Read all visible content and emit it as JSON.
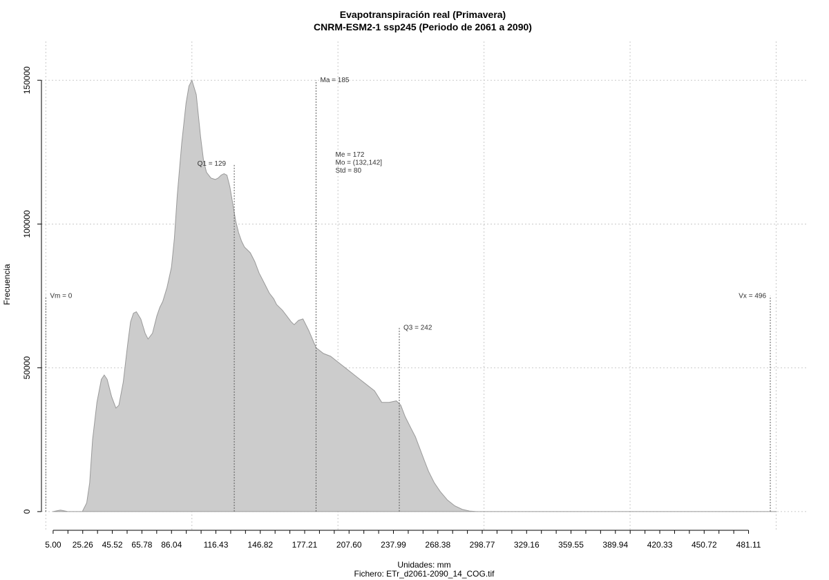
{
  "chart_data": {
    "type": "area",
    "title": "Evapotranspiración real (Primavera)",
    "subtitle": "CNRM-ESM2-1 ssp245 (Periodo de 2061 a 2090)",
    "xlabel": "Unidades: mm",
    "ylabel": "Frecuencia",
    "file_label": "Fichero: ETr_d2061-2090_14_COG.tif",
    "xlim": [
      -3,
      522
    ],
    "ylim": [
      -6500,
      163500
    ],
    "x_ticks": [
      5.0,
      25.26,
      45.52,
      65.78,
      86.04,
      116.43,
      146.82,
      177.21,
      207.6,
      237.99,
      268.38,
      298.77,
      329.16,
      359.55,
      389.94,
      420.33,
      450.72,
      481.11
    ],
    "x_tick_labels": [
      "5.00",
      "25.26",
      "45.52",
      "65.78",
      "86.04",
      "116.43",
      "146.82",
      "177.21",
      "207.60",
      "237.99",
      "268.38",
      "298.77",
      "329.16",
      "359.55",
      "389.94",
      "420.33",
      "450.72",
      "481.11"
    ],
    "x_minor_ticks": [
      5,
      15.13,
      25.26,
      35.39,
      45.52,
      55.65,
      65.78,
      75.91,
      86.04,
      96.17,
      106.3,
      116.43,
      126.56,
      136.69,
      146.82,
      156.95,
      167.08,
      177.21,
      187.34,
      197.47,
      207.6,
      217.73,
      227.86,
      237.99,
      248.12,
      258.25,
      268.38,
      278.51,
      288.64,
      298.77,
      308.9,
      319.03,
      329.16,
      339.29,
      349.42,
      359.55,
      369.68,
      379.81,
      389.94,
      400.07,
      410.2,
      420.33,
      430.46,
      440.59,
      450.72,
      460.85,
      470.98,
      481.11
    ],
    "y_ticks": [
      0,
      50000,
      100000,
      150000
    ],
    "y_tick_labels": [
      "0",
      "50000",
      "100000",
      "150000"
    ],
    "grid_x": [
      0,
      100,
      200,
      300,
      400,
      500
    ],
    "grid_y": [
      0,
      50000,
      100000,
      150000
    ],
    "grid": true,
    "fill_color": "#cccccc",
    "edge_color": "#999999",
    "series": [
      {
        "x": [
          5,
          10,
          15,
          20,
          25,
          28,
          30,
          32,
          35,
          38,
          40,
          42,
          45,
          48,
          50,
          53,
          56,
          58,
          60,
          62,
          65,
          68,
          70,
          73,
          76,
          78,
          80,
          83,
          86,
          88,
          90,
          93,
          96,
          98,
          100,
          103,
          106,
          108,
          110,
          113,
          116,
          118,
          120,
          122,
          124,
          126,
          128,
          130,
          132,
          134,
          136,
          138,
          140,
          143,
          146,
          148,
          150,
          153,
          156,
          158,
          160,
          162,
          165,
          168,
          170,
          173,
          176,
          180,
          185,
          190,
          195,
          200,
          205,
          210,
          215,
          220,
          225,
          230,
          235,
          240,
          243,
          246,
          250,
          253,
          256,
          259,
          262,
          266,
          270,
          275,
          280,
          285,
          290,
          295,
          300,
          305,
          310,
          315,
          320,
          325,
          330,
          335,
          340,
          345,
          350,
          355,
          360,
          365,
          370,
          375,
          380,
          385,
          390,
          395,
          400,
          405,
          410,
          415,
          420,
          425,
          430,
          440,
          450,
          460,
          470,
          480,
          490,
          500
        ],
        "y": [
          0,
          500,
          0,
          0,
          0,
          3000,
          10000,
          25000,
          38000,
          46000,
          47500,
          46000,
          40000,
          36000,
          37000,
          45000,
          58000,
          66000,
          69000,
          69500,
          67000,
          62000,
          60000,
          62000,
          68000,
          71000,
          73000,
          78000,
          85000,
          95000,
          110000,
          128000,
          142000,
          148000,
          150000,
          145000,
          130000,
          122000,
          118000,
          116000,
          115500,
          116000,
          117000,
          117500,
          117000,
          113000,
          107000,
          101000,
          97000,
          94000,
          92000,
          91000,
          90000,
          87000,
          83000,
          81000,
          79000,
          76000,
          74000,
          72000,
          71000,
          70000,
          68000,
          66000,
          65000,
          66500,
          67000,
          63000,
          57000,
          55000,
          54000,
          52000,
          50000,
          48000,
          46000,
          44000,
          42000,
          38000,
          38000,
          38500,
          37000,
          33000,
          29000,
          26000,
          22000,
          18000,
          14000,
          10000,
          7000,
          4000,
          2000,
          800,
          200,
          0,
          0,
          0,
          0,
          0,
          0,
          0,
          0,
          0,
          0,
          0,
          0,
          0,
          0,
          0,
          0,
          0,
          0,
          0,
          0,
          0,
          0,
          0,
          0,
          0,
          0,
          0,
          0,
          0,
          0,
          0,
          0,
          0,
          0,
          0
        ]
      }
    ],
    "annotations": [
      {
        "label": "Vm = 0",
        "x": 0,
        "line_top": 75000
      },
      {
        "label": "Q1 = 129",
        "x": 129,
        "line_top": 121000
      },
      {
        "label": "Ma = 185",
        "x": 185,
        "line_top": 150000
      },
      {
        "label": "Q3 = 242",
        "x": 242,
        "line_top": 64000
      },
      {
        "label": "Vx = 496",
        "x": 496,
        "line_top": 75000
      }
    ],
    "stats": [
      "Me = 172",
      "Mo = (132,142]",
      "Std = 80"
    ]
  }
}
